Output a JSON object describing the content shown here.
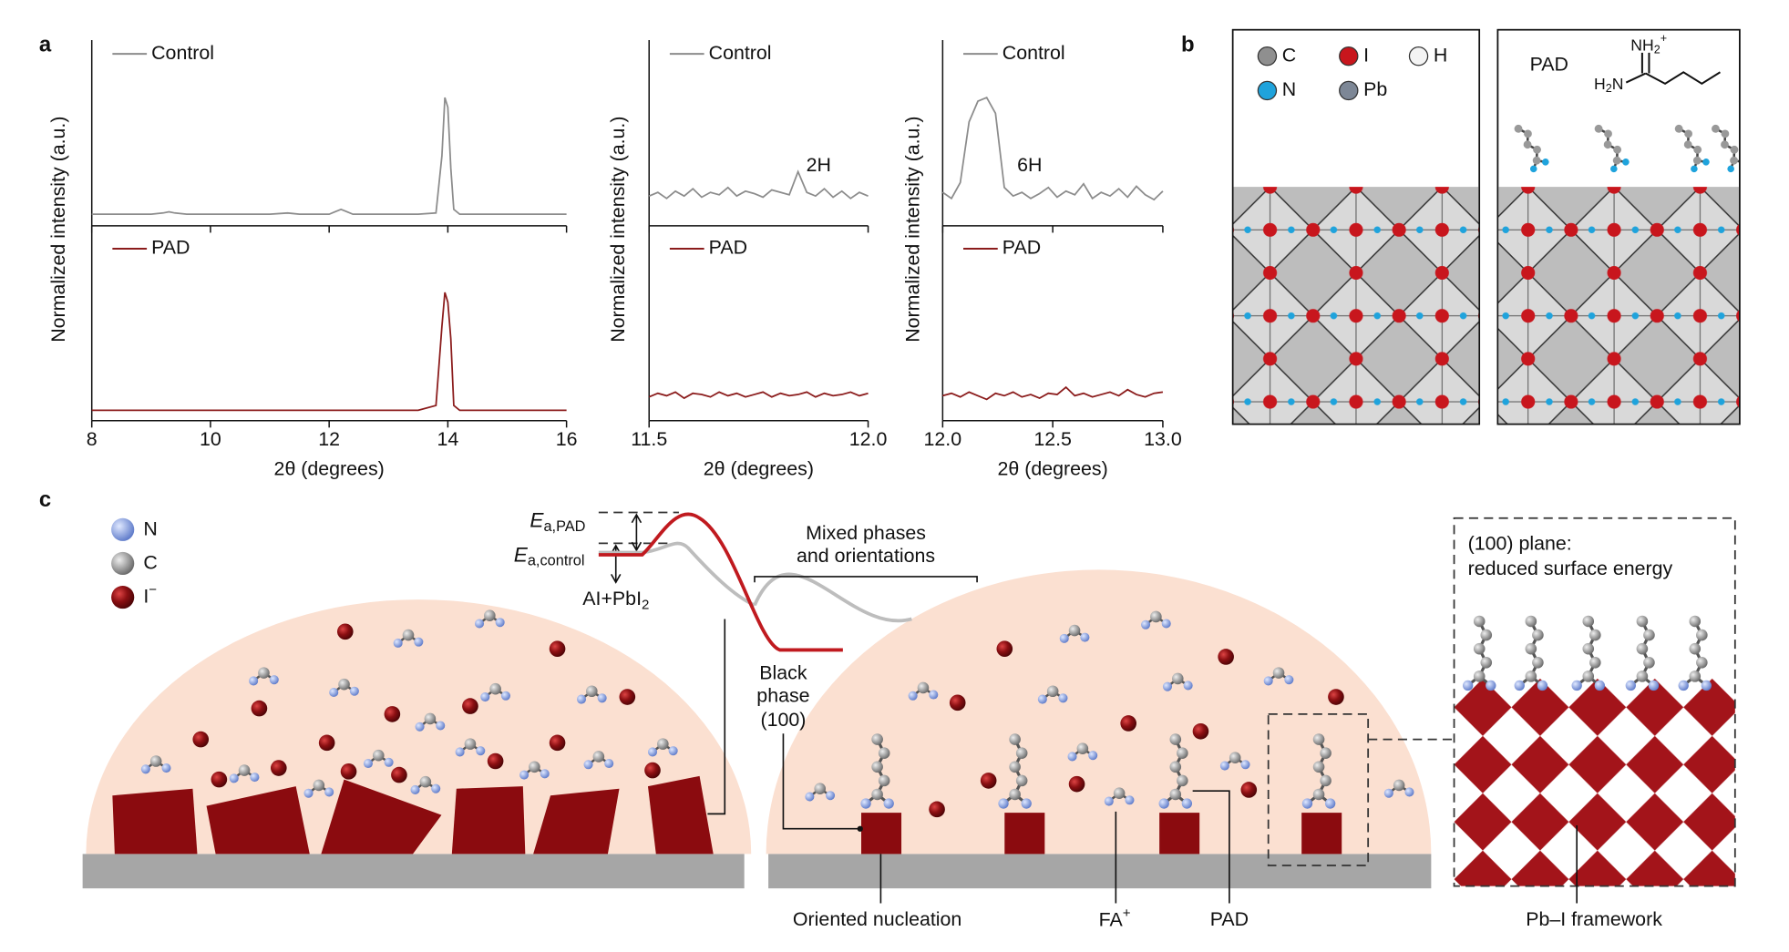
{
  "panel_labels": [
    "a",
    "b",
    "c"
  ],
  "chart_data": [
    {
      "type": "line",
      "xlabel": "2θ (degrees)",
      "ylabel": "Normalized intensity (a.u.)",
      "x": [
        8,
        8.5,
        9,
        9.2,
        9.3,
        9.4,
        9.6,
        10,
        10.5,
        11,
        11.3,
        11.5,
        12,
        12.1,
        12.2,
        12.3,
        12.4,
        13,
        13.5,
        13.8,
        13.9,
        13.95,
        14,
        14.05,
        14.1,
        14.2,
        14.5,
        15,
        15.5,
        16
      ],
      "series": [
        {
          "name": "Control",
          "color": "#8c8c8c",
          "values": [
            0.02,
            0.02,
            0.02,
            0.03,
            0.04,
            0.03,
            0.02,
            0.02,
            0.02,
            0.02,
            0.03,
            0.02,
            0.02,
            0.04,
            0.06,
            0.04,
            0.02,
            0.02,
            0.02,
            0.03,
            0.5,
            0.98,
            0.9,
            0.4,
            0.06,
            0.02,
            0.02,
            0.02,
            0.02,
            0.02
          ]
        },
        {
          "name": "PAD",
          "color": "#8b1c1c",
          "values": [
            0.01,
            0.01,
            0.01,
            0.01,
            0.01,
            0.01,
            0.01,
            0.01,
            0.01,
            0.01,
            0.01,
            0.01,
            0.01,
            0.01,
            0.01,
            0.01,
            0.01,
            0.01,
            0.01,
            0.05,
            0.7,
            0.98,
            0.9,
            0.6,
            0.05,
            0.01,
            0.01,
            0.01,
            0.01,
            0.01
          ]
        }
      ],
      "xlim": [
        8,
        16
      ],
      "xticks": [
        8,
        10,
        12,
        14,
        16
      ],
      "ylim": [
        0,
        1
      ]
    },
    {
      "type": "line",
      "xlabel": "2θ (degrees)",
      "ylabel": "Normalized intensity (a.u.)",
      "annotation": "2H",
      "x": [
        11.5,
        11.52,
        11.54,
        11.56,
        11.58,
        11.6,
        11.62,
        11.64,
        11.66,
        11.68,
        11.7,
        11.72,
        11.74,
        11.76,
        11.78,
        11.8,
        11.82,
        11.84,
        11.86,
        11.88,
        11.9,
        11.92,
        11.94,
        11.96,
        11.98,
        12
      ],
      "series": [
        {
          "name": "Control",
          "color": "#8c8c8c",
          "values": [
            0.17,
            0.2,
            0.15,
            0.21,
            0.17,
            0.23,
            0.16,
            0.2,
            0.18,
            0.24,
            0.17,
            0.21,
            0.19,
            0.16,
            0.22,
            0.2,
            0.18,
            0.37,
            0.2,
            0.17,
            0.23,
            0.16,
            0.21,
            0.15,
            0.2,
            0.17
          ]
        },
        {
          "name": "PAD",
          "color": "#8b1c1c",
          "values": [
            0.12,
            0.15,
            0.13,
            0.16,
            0.11,
            0.15,
            0.14,
            0.12,
            0.16,
            0.13,
            0.15,
            0.12,
            0.14,
            0.16,
            0.12,
            0.15,
            0.13,
            0.14,
            0.16,
            0.12,
            0.15,
            0.13,
            0.14,
            0.16,
            0.13,
            0.15
          ]
        }
      ],
      "xlim": [
        11.5,
        12
      ],
      "xticks": [
        11.5,
        {
          "value": 12,
          "label": "12.0"
        }
      ],
      "ylim": [
        0,
        1
      ]
    },
    {
      "type": "line",
      "xlabel": "2θ (degrees)",
      "ylabel": "Normalized intensity (a.u.)",
      "annotation": "6H",
      "x": [
        12,
        12.04,
        12.08,
        12.12,
        12.16,
        12.2,
        12.24,
        12.28,
        12.32,
        12.36,
        12.4,
        12.44,
        12.48,
        12.52,
        12.56,
        12.6,
        12.64,
        12.68,
        12.72,
        12.76,
        12.8,
        12.84,
        12.88,
        12.92,
        12.96,
        13
      ],
      "series": [
        {
          "name": "Control",
          "color": "#8c8c8c",
          "values": [
            0.2,
            0.15,
            0.28,
            0.78,
            0.95,
            0.98,
            0.85,
            0.24,
            0.17,
            0.2,
            0.15,
            0.19,
            0.24,
            0.16,
            0.21,
            0.18,
            0.27,
            0.15,
            0.2,
            0.17,
            0.23,
            0.16,
            0.25,
            0.18,
            0.14,
            0.21
          ]
        },
        {
          "name": "PAD",
          "color": "#8b1c1c",
          "values": [
            0.13,
            0.15,
            0.12,
            0.16,
            0.13,
            0.1,
            0.15,
            0.13,
            0.16,
            0.12,
            0.14,
            0.11,
            0.15,
            0.14,
            0.2,
            0.13,
            0.15,
            0.12,
            0.14,
            0.16,
            0.13,
            0.18,
            0.14,
            0.12,
            0.15,
            0.16
          ]
        }
      ],
      "xlim": [
        12,
        13
      ],
      "xticks": [
        {
          "value": 12,
          "label": "12.0"
        },
        12.5,
        {
          "value": 13,
          "label": "13.0"
        }
      ],
      "ylim": [
        0,
        1
      ]
    }
  ],
  "panel_b": {
    "legend": [
      {
        "label": "C",
        "color": "#8f8f8f"
      },
      {
        "label": "I",
        "color": "#c8161d"
      },
      {
        "label": "H",
        "color": "#f4f4f4"
      },
      {
        "label": "N",
        "color": "#1fa3dc"
      },
      {
        "label": "Pb",
        "color": "#7d8796"
      }
    ],
    "molecule_label": "PAD",
    "formula": {
      "top": "NH",
      "top_sub": "2",
      "top_sup": "+",
      "left": "H",
      "left_sub": "2",
      "left_end": "N"
    }
  },
  "panel_c": {
    "legend": [
      {
        "label": "N"
      },
      {
        "label": "C"
      },
      {
        "label": "I",
        "sup": "−"
      }
    ],
    "ea_pad": {
      "main": "E",
      "sub": "a,PAD"
    },
    "ea_control": {
      "main": "E",
      "sub": "a,control"
    },
    "reactant": {
      "main": "AI+PbI",
      "sub": "2"
    },
    "mixed": [
      "Mixed phases",
      "and orientations"
    ],
    "black": [
      "Black",
      "phase",
      "(100)"
    ],
    "plane": [
      "(100) plane:",
      "reduced surface energy"
    ],
    "nucleation": "Oriented nucleation",
    "fa": {
      "main": "FA",
      "sup": "+"
    },
    "pad": "PAD",
    "framework": "Pb–I framework"
  }
}
